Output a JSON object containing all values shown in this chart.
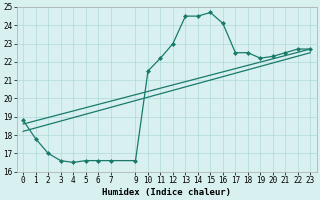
{
  "line1_x": [
    0,
    1,
    2,
    3,
    4,
    5,
    6,
    7,
    9,
    10,
    11,
    12,
    13,
    14,
    15,
    16,
    17,
    18,
    19,
    20,
    21,
    22,
    23
  ],
  "line1_y": [
    18.8,
    17.8,
    17.0,
    16.6,
    16.5,
    16.6,
    16.6,
    16.6,
    16.6,
    21.5,
    22.2,
    23.0,
    24.5,
    24.5,
    24.7,
    24.1,
    22.5,
    22.5,
    22.2,
    22.3,
    22.5,
    22.7,
    22.7
  ],
  "line2_x": [
    0,
    23
  ],
  "line2_y": [
    18.6,
    22.7
  ],
  "line3_x": [
    0,
    23
  ],
  "line3_y": [
    18.2,
    22.5
  ],
  "color": "#1a7a6a",
  "bg_color": "#d8f0f0",
  "grid_color": "#b0d8d8",
  "xlabel": "Humidex (Indice chaleur)",
  "ylim": [
    16,
    25
  ],
  "xlim": [
    -0.5,
    23.5
  ],
  "yticks": [
    16,
    17,
    18,
    19,
    20,
    21,
    22,
    23,
    24,
    25
  ],
  "xticks": [
    0,
    1,
    2,
    3,
    4,
    5,
    6,
    7,
    9,
    10,
    11,
    12,
    13,
    14,
    15,
    16,
    17,
    18,
    19,
    20,
    21,
    22,
    23
  ],
  "marker": "D",
  "markersize": 2.0,
  "linewidth": 0.9,
  "tick_fontsize": 5.5,
  "xlabel_fontsize": 6.5
}
